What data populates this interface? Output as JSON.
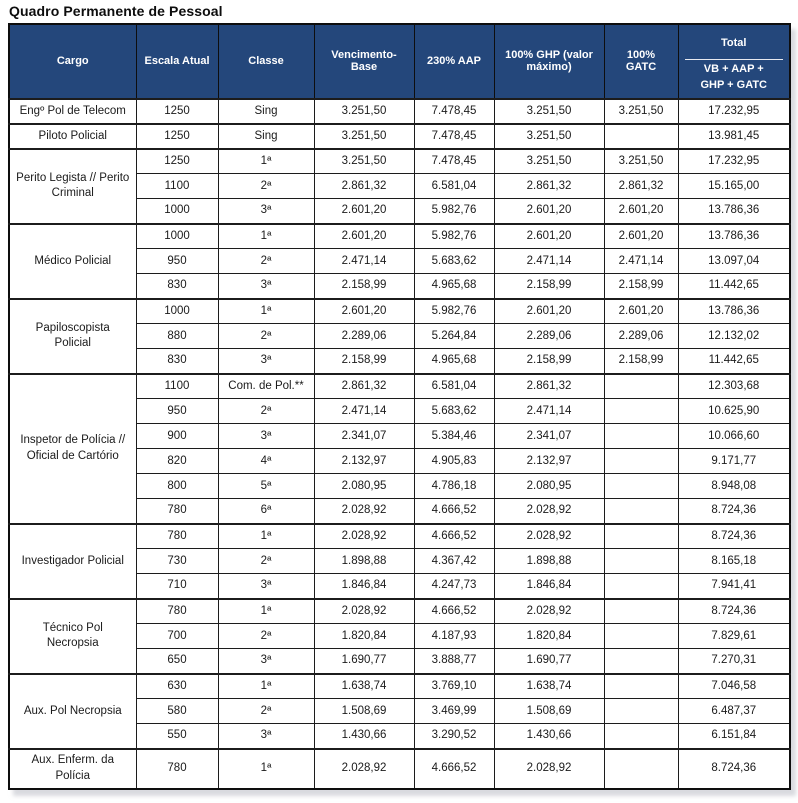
{
  "title": "Quadro Permanente de Pessoal",
  "colors": {
    "header_bg": "#24477B",
    "header_text": "#FFFFFF",
    "border": "#1A1A1A"
  },
  "table": {
    "header": {
      "cargo": "Cargo",
      "escala": "Escala Atual",
      "classe": "Classe",
      "vb": "Vencimento-Base",
      "aap": "230% AAP",
      "ghp": "100% GHP (valor máximo)",
      "gatc": "100% GATC",
      "total": "Total",
      "total_sub": "VB + AAP + GHP + GATC"
    },
    "groups": [
      {
        "cargo": "Engº Pol de Telecom",
        "rows": [
          {
            "escala": "1250",
            "classe": "Sing",
            "vb": "3.251,50",
            "aap": "7.478,45",
            "ghp": "3.251,50",
            "gatc": "3.251,50",
            "total": "17.232,95"
          }
        ]
      },
      {
        "cargo": "Piloto Policial",
        "rows": [
          {
            "escala": "1250",
            "classe": "Sing",
            "vb": "3.251,50",
            "aap": "7.478,45",
            "ghp": "3.251,50",
            "gatc": "",
            "total": "13.981,45"
          }
        ]
      },
      {
        "cargo": "Perito Legista // Perito Criminal",
        "rows": [
          {
            "escala": "1250",
            "classe": "1ª",
            "vb": "3.251,50",
            "aap": "7.478,45",
            "ghp": "3.251,50",
            "gatc": "3.251,50",
            "total": "17.232,95"
          },
          {
            "escala": "1100",
            "classe": "2ª",
            "vb": "2.861,32",
            "aap": "6.581,04",
            "ghp": "2.861,32",
            "gatc": "2.861,32",
            "total": "15.165,00"
          },
          {
            "escala": "1000",
            "classe": "3ª",
            "vb": "2.601,20",
            "aap": "5.982,76",
            "ghp": "2.601,20",
            "gatc": "2.601,20",
            "total": "13.786,36"
          }
        ]
      },
      {
        "cargo": "Médico Policial",
        "rows": [
          {
            "escala": "1000",
            "classe": "1ª",
            "vb": "2.601,20",
            "aap": "5.982,76",
            "ghp": "2.601,20",
            "gatc": "2.601,20",
            "total": "13.786,36"
          },
          {
            "escala": "950",
            "classe": "2ª",
            "vb": "2.471,14",
            "aap": "5.683,62",
            "ghp": "2.471,14",
            "gatc": "2.471,14",
            "total": "13.097,04"
          },
          {
            "escala": "830",
            "classe": "3ª",
            "vb": "2.158,99",
            "aap": "4.965,68",
            "ghp": "2.158,99",
            "gatc": "2.158,99",
            "total": "11.442,65"
          }
        ]
      },
      {
        "cargo": "Papiloscopista Policial",
        "rows": [
          {
            "escala": "1000",
            "classe": "1ª",
            "vb": "2.601,20",
            "aap": "5.982,76",
            "ghp": "2.601,20",
            "gatc": "2.601,20",
            "total": "13.786,36"
          },
          {
            "escala": "880",
            "classe": "2ª",
            "vb": "2.289,06",
            "aap": "5.264,84",
            "ghp": "2.289,06",
            "gatc": "2.289,06",
            "total": "12.132,02"
          },
          {
            "escala": "830",
            "classe": "3ª",
            "vb": "2.158,99",
            "aap": "4.965,68",
            "ghp": "2.158,99",
            "gatc": "2.158,99",
            "total": "11.442,65"
          }
        ]
      },
      {
        "cargo": "Inspetor de Polícia // Oficial de Cartório",
        "rows": [
          {
            "escala": "1100",
            "classe": "Com. de Pol.**",
            "vb": "2.861,32",
            "aap": "6.581,04",
            "ghp": "2.861,32",
            "gatc": "",
            "total": "12.303,68"
          },
          {
            "escala": "950",
            "classe": "2ª",
            "vb": "2.471,14",
            "aap": "5.683,62",
            "ghp": "2.471,14",
            "gatc": "",
            "total": "10.625,90"
          },
          {
            "escala": "900",
            "classe": "3ª",
            "vb": "2.341,07",
            "aap": "5.384,46",
            "ghp": "2.341,07",
            "gatc": "",
            "total": "10.066,60"
          },
          {
            "escala": "820",
            "classe": "4ª",
            "vb": "2.132,97",
            "aap": "4.905,83",
            "ghp": "2.132,97",
            "gatc": "",
            "total": "9.171,77"
          },
          {
            "escala": "800",
            "classe": "5ª",
            "vb": "2.080,95",
            "aap": "4.786,18",
            "ghp": "2.080,95",
            "gatc": "",
            "total": "8.948,08"
          },
          {
            "escala": "780",
            "classe": "6ª",
            "vb": "2.028,92",
            "aap": "4.666,52",
            "ghp": "2.028,92",
            "gatc": "",
            "total": "8.724,36"
          }
        ]
      },
      {
        "cargo": "Investigador Policial",
        "rows": [
          {
            "escala": "780",
            "classe": "1ª",
            "vb": "2.028,92",
            "aap": "4.666,52",
            "ghp": "2.028,92",
            "gatc": "",
            "total": "8.724,36"
          },
          {
            "escala": "730",
            "classe": "2ª",
            "vb": "1.898,88",
            "aap": "4.367,42",
            "ghp": "1.898,88",
            "gatc": "",
            "total": "8.165,18"
          },
          {
            "escala": "710",
            "classe": "3ª",
            "vb": "1.846,84",
            "aap": "4.247,73",
            "ghp": "1.846,84",
            "gatc": "",
            "total": "7.941,41"
          }
        ]
      },
      {
        "cargo": "Técnico Pol Necropsia",
        "rows": [
          {
            "escala": "780",
            "classe": "1ª",
            "vb": "2.028,92",
            "aap": "4.666,52",
            "ghp": "2.028,92",
            "gatc": "",
            "total": "8.724,36"
          },
          {
            "escala": "700",
            "classe": "2ª",
            "vb": "1.820,84",
            "aap": "4.187,93",
            "ghp": "1.820,84",
            "gatc": "",
            "total": "7.829,61"
          },
          {
            "escala": "650",
            "classe": "3ª",
            "vb": "1.690,77",
            "aap": "3.888,77",
            "ghp": "1.690,77",
            "gatc": "",
            "total": "7.270,31"
          }
        ]
      },
      {
        "cargo": "Aux. Pol Necropsia",
        "rows": [
          {
            "escala": "630",
            "classe": "1ª",
            "vb": "1.638,74",
            "aap": "3.769,10",
            "ghp": "1.638,74",
            "gatc": "",
            "total": "7.046,58"
          },
          {
            "escala": "580",
            "classe": "2ª",
            "vb": "1.508,69",
            "aap": "3.469,99",
            "ghp": "1.508,69",
            "gatc": "",
            "total": "6.487,37"
          },
          {
            "escala": "550",
            "classe": "3ª",
            "vb": "1.430,66",
            "aap": "3.290,52",
            "ghp": "1.430,66",
            "gatc": "",
            "total": "6.151,84"
          }
        ]
      },
      {
        "cargo": "Aux. Enferm. da Polícia",
        "rows": [
          {
            "escala": "780",
            "classe": "1ª",
            "vb": "2.028,92",
            "aap": "4.666,52",
            "ghp": "2.028,92",
            "gatc": "",
            "total": "8.724,36"
          }
        ]
      }
    ]
  }
}
